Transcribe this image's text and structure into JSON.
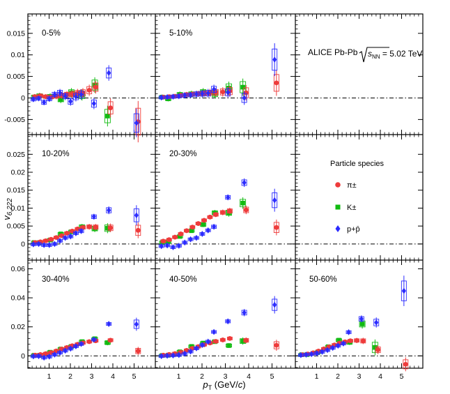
{
  "chart_data": {
    "type": "scatter",
    "ylabel_main": "v",
    "ylabel_sub": "6,222",
    "xlabel_main": "p",
    "xlabel_sub": "T",
    "xlabel_unit_pre": " (GeV/",
    "xlabel_unit_c": "c",
    "xlabel_unit_post": ")",
    "xlim": [
      0,
      6
    ],
    "x_ticks": [
      "1",
      "2",
      "3",
      "4",
      "5"
    ],
    "rows": [
      {
        "ylim": [
          -0.0085,
          0.0195
        ],
        "ticks": [
          -0.005,
          0,
          0.005,
          0.01,
          0.015
        ],
        "tick_labels": [
          "-0.005",
          "0",
          "0.005",
          "0.01",
          "0.015"
        ]
      },
      {
        "ylim": [
          -0.0045,
          0.0305
        ],
        "ticks": [
          0,
          0.005,
          0.01,
          0.015,
          0.02,
          0.025
        ],
        "tick_labels": [
          "0",
          "0.005",
          "0.01",
          "0.015",
          "0.02",
          "0.025"
        ]
      },
      {
        "ylim": [
          -0.0085,
          0.066
        ],
        "ticks": [
          0,
          0.02,
          0.04,
          0.06
        ],
        "tick_labels": [
          "0",
          "0.02",
          "0.04",
          "0.06"
        ]
      }
    ],
    "title_text": "ALICE Pb-Pb ",
    "title_snn": "s",
    "title_snn_sub": "NN",
    "title_energy": " = 5.02 TeV",
    "legend_header": "Particle species",
    "species": [
      {
        "key": "pi",
        "label": "π±",
        "color": "#ee3b3b",
        "marker": "circle"
      },
      {
        "key": "K",
        "label": "K±",
        "color": "#11bb11",
        "marker": "square"
      },
      {
        "key": "p",
        "label": "p+p̄",
        "color": "#2b2bff",
        "marker": "diamond"
      }
    ],
    "panels": [
      {
        "label": "0-5%",
        "row": 0,
        "col": 0,
        "pi": {
          "x": [
            0.3,
            0.55,
            0.8,
            1.05,
            1.3,
            1.55,
            1.8,
            2.05,
            2.3,
            2.55,
            2.85,
            3.15,
            3.85,
            5.15
          ],
          "y": [
            0.0003,
            0.0005,
            0.0003,
            0.0002,
            0.0004,
            0.0006,
            0.0008,
            0.0009,
            0.0011,
            0.0012,
            0.0018,
            0.0025,
            -0.0023,
            -0.0055
          ],
          "err": [
            0.0006,
            0.0006,
            0.0006,
            0.0006,
            0.0007,
            0.0008,
            0.0008,
            0.0009,
            0.001,
            0.0011,
            0.0013,
            0.0015,
            0.0022,
            0.0048
          ]
        },
        "K": {
          "x": [
            0.3,
            0.55,
            1.05,
            1.55,
            2.05,
            2.55,
            3.15,
            3.75
          ],
          "y": [
            0.0002,
            0.0005,
            0.0003,
            -0.0003,
            0.0012,
            0.0007,
            0.003,
            -0.0042
          ],
          "err": [
            0.0007,
            0.0007,
            0.0008,
            0.0009,
            0.0011,
            0.0013,
            0.0018,
            0.0024
          ]
        },
        "p": {
          "x": [
            0.3,
            0.55,
            0.8,
            1.05,
            1.3,
            1.55,
            1.8,
            2.05,
            2.3,
            2.55,
            3.15,
            3.85,
            5.15
          ],
          "y": [
            -0.0003,
            -0.0001,
            -0.001,
            -0.0002,
            0.0008,
            0.0012,
            0.0004,
            -0.0008,
            0.0003,
            0.0008,
            -0.0013,
            0.0058,
            -0.0058
          ],
          "err": [
            0.0006,
            0.0006,
            0.0007,
            0.0007,
            0.0008,
            0.0009,
            0.0009,
            0.001,
            0.0011,
            0.0012,
            0.0013,
            0.0018,
            0.0033
          ]
        }
      },
      {
        "label": "5-10%",
        "row": 0,
        "col": 1,
        "pi": {
          "x": [
            0.3,
            0.55,
            0.8,
            1.05,
            1.3,
            1.55,
            1.8,
            2.05,
            2.3,
            2.55,
            2.85,
            3.15,
            3.85,
            5.15
          ],
          "y": [
            0.0002,
            0.0003,
            0.0004,
            0.0006,
            0.0008,
            0.0009,
            0.001,
            0.0011,
            0.0012,
            0.0013,
            0.0014,
            0.0016,
            0.0012,
            0.0035
          ],
          "err": [
            0.0005,
            0.0005,
            0.0005,
            0.0005,
            0.0006,
            0.0006,
            0.0007,
            0.0008,
            0.0009,
            0.001,
            0.0011,
            0.0013,
            0.0018,
            0.003
          ]
        },
        "K": {
          "x": [
            0.3,
            0.55,
            1.05,
            1.55,
            2.05,
            2.55,
            3.15,
            3.75
          ],
          "y": [
            0.0002,
            -0.0002,
            0.0008,
            0.0009,
            0.0013,
            0.001,
            0.0023,
            0.0025
          ],
          "err": [
            0.0006,
            0.0006,
            0.0007,
            0.0008,
            0.001,
            0.0011,
            0.0015,
            0.002
          ]
        },
        "p": {
          "x": [
            0.3,
            0.55,
            0.8,
            1.05,
            1.3,
            1.55,
            1.8,
            2.05,
            2.3,
            2.55,
            3.15,
            3.85,
            5.15
          ],
          "y": [
            0.0001,
            0.0002,
            0.0003,
            0.0004,
            0.0006,
            0.0007,
            0.0009,
            0.001,
            0.0011,
            0.002,
            0.0013,
            0,
            0.0089
          ],
          "err": [
            0.0005,
            0.0005,
            0.0006,
            0.0006,
            0.0007,
            0.0007,
            0.0008,
            0.0009,
            0.001,
            0.0011,
            0.0012,
            0.0016,
            0.0038
          ]
        }
      },
      {
        "label": "10-20%",
        "row": 1,
        "col": 0,
        "pi": {
          "x": [
            0.3,
            0.55,
            0.8,
            1.05,
            1.3,
            1.55,
            1.8,
            2.05,
            2.3,
            2.55,
            2.85,
            3.15,
            3.85,
            5.15
          ],
          "y": [
            0.0004,
            0.0006,
            0.0009,
            0.0013,
            0.0018,
            0.0023,
            0.003,
            0.0036,
            0.0042,
            0.0046,
            0.0048,
            0.0047,
            0.0045,
            0.0038
          ],
          "err": [
            0.0003,
            0.0003,
            0.0003,
            0.0003,
            0.0004,
            0.0004,
            0.0005,
            0.0005,
            0.0006,
            0.0007,
            0.0008,
            0.0009,
            0.0012,
            0.0022
          ]
        },
        "K": {
          "x": [
            0.3,
            0.55,
            1.05,
            1.55,
            2.05,
            2.55,
            3.15,
            3.75
          ],
          "y": [
            0.0004,
            0.0004,
            0.0011,
            0.0028,
            0.0034,
            0.0048,
            0.0043,
            0.0044
          ],
          "err": [
            0.0004,
            0.0004,
            0.0005,
            0.0006,
            0.0007,
            0.0008,
            0.001,
            0.0014
          ]
        },
        "p": {
          "x": [
            0.3,
            0.55,
            0.8,
            1.05,
            1.3,
            1.55,
            1.8,
            2.05,
            2.3,
            2.55,
            3.15,
            3.85,
            5.15
          ],
          "y": [
            -0.0001,
            0,
            -0.0003,
            -0.0003,
            0,
            0.0009,
            0.0017,
            0.0021,
            0.003,
            0.0036,
            0.0076,
            0.0094,
            0.008
          ],
          "err": [
            0.0003,
            0.0003,
            0.0003,
            0.0004,
            0.0004,
            0.0004,
            0.0005,
            0.0006,
            0.0006,
            0.0007,
            0.0008,
            0.0011,
            0.0028
          ]
        }
      },
      {
        "label": "20-30%",
        "row": 1,
        "col": 1,
        "pi": {
          "x": [
            0.3,
            0.55,
            0.8,
            1.05,
            1.3,
            1.55,
            1.8,
            2.05,
            2.3,
            2.55,
            2.85,
            3.15,
            3.85,
            5.15
          ],
          "y": [
            0.0008,
            0.0012,
            0.0019,
            0.0028,
            0.0037,
            0.0047,
            0.0057,
            0.0066,
            0.0075,
            0.0082,
            0.0088,
            0.0092,
            0.0095,
            0.0046
          ],
          "err": [
            0.0003,
            0.0003,
            0.0003,
            0.0003,
            0.0004,
            0.0004,
            0.0005,
            0.0005,
            0.0006,
            0.0007,
            0.0008,
            0.0009,
            0.0012,
            0.0022
          ]
        },
        "K": {
          "x": [
            0.3,
            0.55,
            1.05,
            1.55,
            2.05,
            2.55,
            3.15,
            3.75
          ],
          "y": [
            0.0004,
            0.0006,
            0.0021,
            0.0037,
            0.0054,
            0.0087,
            0.0087,
            0.0114
          ],
          "err": [
            0.0004,
            0.0004,
            0.0005,
            0.0006,
            0.0007,
            0.0008,
            0.0011,
            0.0016
          ]
        },
        "p": {
          "x": [
            0.3,
            0.55,
            0.8,
            1.05,
            1.3,
            1.55,
            1.8,
            2.05,
            2.3,
            2.55,
            3.15,
            3.85,
            5.15
          ],
          "y": [
            -0.0006,
            -0.0004,
            -0.0009,
            -0.0005,
            0.0004,
            0.0013,
            0.0017,
            0.0028,
            0.0038,
            0.0048,
            0.013,
            0.0171,
            0.0122
          ],
          "err": [
            0.0003,
            0.0003,
            0.0003,
            0.0004,
            0.0004,
            0.0004,
            0.0005,
            0.0006,
            0.0006,
            0.0007,
            0.0008,
            0.0012,
            0.0032
          ]
        }
      },
      {
        "label": "30-40%",
        "row": 2,
        "col": 0,
        "pi": {
          "x": [
            0.3,
            0.55,
            0.8,
            1.05,
            1.3,
            1.55,
            1.8,
            2.05,
            2.3,
            2.55,
            2.85,
            3.15,
            3.85,
            5.15
          ],
          "y": [
            0.0005,
            0.0009,
            0.0015,
            0.0023,
            0.0034,
            0.0047,
            0.0058,
            0.007,
            0.008,
            0.009,
            0.0098,
            0.0104,
            0.0108,
            0.0034
          ],
          "err": [
            0.0004,
            0.0004,
            0.0004,
            0.0005,
            0.0005,
            0.0006,
            0.0006,
            0.0007,
            0.0008,
            0.0009,
            0.001,
            0.0012,
            0.0016,
            0.0028
          ]
        },
        "K": {
          "x": [
            0.3,
            0.55,
            1.05,
            1.55,
            2.05,
            2.55,
            3.15,
            3.75
          ],
          "y": [
            0.0004,
            0.0004,
            0.0025,
            0.0047,
            0.0065,
            0.0098,
            0.0118,
            0.0091
          ],
          "err": [
            0.0005,
            0.0005,
            0.0006,
            0.0007,
            0.0009,
            0.001,
            0.0013,
            0.0018
          ]
        },
        "p": {
          "x": [
            0.3,
            0.55,
            0.8,
            1.05,
            1.3,
            1.55,
            1.8,
            2.05,
            2.3,
            2.55,
            3.15,
            3.85,
            5.15
          ],
          "y": [
            -0.0003,
            -0.0002,
            -0.0012,
            -0.0005,
            0.0009,
            0.0022,
            0.0036,
            0.005,
            0.0066,
            0.0082,
            0.0112,
            0.022,
            0.0218
          ],
          "err": [
            0.0004,
            0.0004,
            0.0004,
            0.0005,
            0.0005,
            0.0006,
            0.0006,
            0.0007,
            0.0008,
            0.0009,
            0.001,
            0.0013,
            0.0045
          ]
        }
      },
      {
        "label": "40-50%",
        "row": 2,
        "col": 1,
        "pi": {
          "x": [
            0.3,
            0.55,
            0.8,
            1.05,
            1.3,
            1.55,
            1.8,
            2.05,
            2.3,
            2.55,
            2.85,
            3.15,
            3.85,
            5.15
          ],
          "y": [
            0.0005,
            0.001,
            0.0016,
            0.0025,
            0.0038,
            0.0052,
            0.0064,
            0.0077,
            0.0089,
            0.01,
            0.011,
            0.012,
            0.0107,
            0.0073
          ],
          "err": [
            0.0004,
            0.0004,
            0.0005,
            0.0005,
            0.0006,
            0.0007,
            0.0008,
            0.0009,
            0.001,
            0.0011,
            0.0013,
            0.0015,
            0.002,
            0.0038
          ]
        },
        "K": {
          "x": [
            0.3,
            0.55,
            1.05,
            1.55,
            2.05,
            2.55,
            3.15,
            3.75
          ],
          "y": [
            0.0003,
            0.0004,
            0.0028,
            0.0065,
            0.0088,
            0.0098,
            0.0071,
            0.0102
          ],
          "err": [
            0.0006,
            0.0006,
            0.0007,
            0.0008,
            0.001,
            0.0012,
            0.0016,
            0.0025
          ]
        },
        "p": {
          "x": [
            0.3,
            0.55,
            0.8,
            1.05,
            1.3,
            1.55,
            1.8,
            2.05,
            2.3,
            2.55,
            3.15,
            3.85,
            5.15
          ],
          "y": [
            -0.0002,
            0.0001,
            0.0003,
            0.0006,
            0.0015,
            0.003,
            0.0052,
            0.0075,
            0.0098,
            0.0165,
            0.0238,
            0.0298,
            0.0352
          ],
          "err": [
            0.0004,
            0.0004,
            0.0005,
            0.0005,
            0.0006,
            0.0007,
            0.0008,
            0.0009,
            0.001,
            0.0012,
            0.0016,
            0.0025,
            0.006
          ]
        }
      },
      {
        "label": "50-60%",
        "row": 2,
        "col": 2,
        "pi": {
          "x": [
            0.3,
            0.55,
            0.8,
            1.05,
            1.3,
            1.55,
            1.8,
            2.05,
            2.3,
            2.55,
            2.85,
            3.15,
            3.85,
            5.15
          ],
          "y": [
            0.0008,
            0.0013,
            0.0021,
            0.0033,
            0.0048,
            0.0062,
            0.0075,
            0.0088,
            0.0097,
            0.0104,
            0.0106,
            0.0103,
            0.0042,
            -0.0058
          ],
          "err": [
            0.0005,
            0.0005,
            0.0006,
            0.0007,
            0.0008,
            0.0009,
            0.001,
            0.0012,
            0.0013,
            0.0015,
            0.0018,
            0.0022,
            0.003,
            0.0048
          ]
        },
        "K": {
          "x": [
            0.3,
            0.55,
            1.05,
            1.55,
            2.05,
            2.55,
            3.15,
            3.75
          ],
          "y": [
            0.0008,
            0.0009,
            0.0024,
            0.0063,
            0.0108,
            0.0093,
            0.022,
            0.0058
          ],
          "err": [
            0.0008,
            0.0008,
            0.001,
            0.0012,
            0.0015,
            0.0018,
            0.0032,
            0.0055
          ]
        },
        "p": {
          "x": [
            0.3,
            0.55,
            0.8,
            1.05,
            1.3,
            1.55,
            1.8,
            2.05,
            2.3,
            2.55,
            3.15,
            3.85,
            5.15
          ],
          "y": [
            0.0005,
            0.0008,
            0.0012,
            0.0018,
            0.0028,
            0.004,
            0.0055,
            0.007,
            0.0085,
            0.0163,
            0.0255,
            0.023,
            0.0448
          ],
          "err": [
            0.0005,
            0.0005,
            0.0006,
            0.0007,
            0.0008,
            0.0009,
            0.001,
            0.0012,
            0.0014,
            0.0016,
            0.0024,
            0.0035,
            0.0105
          ]
        }
      }
    ]
  }
}
